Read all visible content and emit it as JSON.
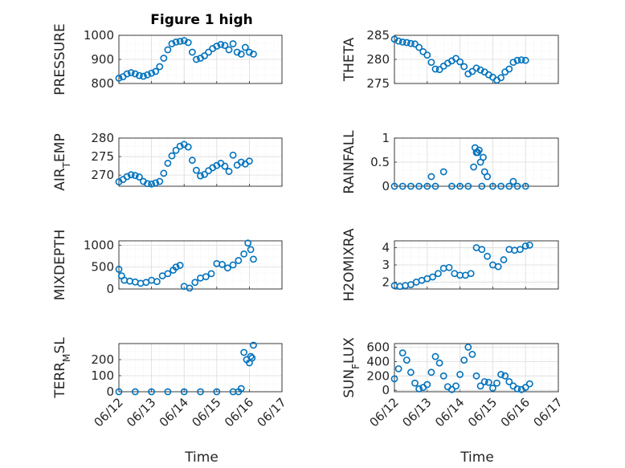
{
  "figure": {
    "title": "Figure 1 high"
  },
  "chart_data": [
    {
      "type": "scatter",
      "ylabel": "PRESSURE",
      "title": "Figure 1 high",
      "xlim": [
        "06/12",
        "06/17"
      ],
      "ylim": [
        800,
        1000
      ],
      "yticks": [
        "800",
        "900",
        "1000"
      ],
      "grid": true,
      "x": [
        "06/12 00:00",
        "06/12 03:00",
        "06/12 06:00",
        "06/12 09:00",
        "06/12 12:00",
        "06/12 15:00",
        "06/12 18:00",
        "06/12 21:00",
        "06/13 00:00",
        "06/13 03:00",
        "06/13 06:00",
        "06/13 09:00",
        "06/13 12:00",
        "06/13 15:00",
        "06/13 18:00",
        "06/13 21:00",
        "06/14 00:00",
        "06/14 03:00",
        "06/14 06:00",
        "06/14 09:00",
        "06/14 12:00",
        "06/14 15:00",
        "06/14 18:00",
        "06/14 21:00",
        "06/15 00:00",
        "06/15 03:00",
        "06/15 06:00",
        "06/15 09:00",
        "06/15 12:00",
        "06/15 15:00",
        "06/15 18:00",
        "06/15 21:00",
        "06/16 00:00",
        "06/16 03:00"
      ],
      "y": [
        822,
        828,
        840,
        845,
        840,
        833,
        830,
        836,
        843,
        850,
        870,
        905,
        940,
        965,
        972,
        975,
        978,
        970,
        930,
        900,
        905,
        915,
        930,
        945,
        955,
        962,
        958,
        940,
        965,
        930,
        922,
        950,
        930,
        922
      ]
    },
    {
      "type": "scatter",
      "ylabel": "THETA",
      "xlim": [
        "06/12",
        "06/17"
      ],
      "ylim": [
        275,
        285
      ],
      "yticks": [
        "275",
        "280",
        "285"
      ],
      "grid": true,
      "x": [
        "06/12 00:00",
        "06/12 03:00",
        "06/12 06:00",
        "06/12 09:00",
        "06/12 12:00",
        "06/12 15:00",
        "06/12 18:00",
        "06/12 21:00",
        "06/13 00:00",
        "06/13 03:00",
        "06/13 06:00",
        "06/13 09:00",
        "06/13 12:00",
        "06/13 15:00",
        "06/13 18:00",
        "06/13 21:00",
        "06/14 00:00",
        "06/14 03:00",
        "06/14 06:00",
        "06/14 09:00",
        "06/14 12:00",
        "06/14 15:00",
        "06/14 18:00",
        "06/14 21:00",
        "06/15 00:00",
        "06/15 03:00",
        "06/15 06:00",
        "06/15 09:00",
        "06/15 12:00",
        "06/15 15:00",
        "06/15 18:00",
        "06/15 21:00",
        "06/16 00:00"
      ],
      "y": [
        284.2,
        283.8,
        283.6,
        283.5,
        283.3,
        283.2,
        282.5,
        281.6,
        280.9,
        279.4,
        278.0,
        277.9,
        278.6,
        279.2,
        279.7,
        280.2,
        279.5,
        278.5,
        277.0,
        277.5,
        278.2,
        277.8,
        277.4,
        276.8,
        276.3,
        275.7,
        276.2,
        277.4,
        278.0,
        279.4,
        279.8,
        279.9,
        279.8
      ]
    },
    {
      "type": "scatter",
      "ylabel": "AIR_TEMP",
      "xlim": [
        "06/12",
        "06/17"
      ],
      "ylim": [
        267,
        280
      ],
      "yticks": [
        "270",
        "275",
        "280"
      ],
      "grid": true,
      "x": [
        "06/12 00:00",
        "06/12 03:00",
        "06/12 06:00",
        "06/12 09:00",
        "06/12 12:00",
        "06/12 15:00",
        "06/12 18:00",
        "06/12 21:00",
        "06/13 00:00",
        "06/13 03:00",
        "06/13 06:00",
        "06/13 09:00",
        "06/13 12:00",
        "06/13 15:00",
        "06/13 18:00",
        "06/13 21:00",
        "06/14 00:00",
        "06/14 03:00",
        "06/14 06:00",
        "06/14 09:00",
        "06/14 12:00",
        "06/14 15:00",
        "06/14 18:00",
        "06/14 21:00",
        "06/15 00:00",
        "06/15 03:00",
        "06/15 06:00",
        "06/15 09:00",
        "06/15 12:00",
        "06/15 15:00",
        "06/15 18:00",
        "06/15 21:00",
        "06/16 00:00"
      ],
      "y": [
        268.2,
        268.8,
        269.6,
        270.1,
        269.9,
        269.5,
        268.3,
        267.7,
        267.6,
        267.9,
        268.3,
        270.5,
        273.2,
        275.2,
        276.7,
        277.8,
        278.3,
        277.6,
        274.0,
        271.3,
        269.8,
        270.2,
        271.2,
        272.0,
        272.6,
        273.2,
        272.4,
        271.0,
        275.4,
        272.7,
        273.5,
        273.0,
        273.8
      ]
    },
    {
      "type": "scatter",
      "ylabel": "RAINFALL",
      "xlim": [
        "06/12",
        "06/17"
      ],
      "ylim": [
        0,
        1
      ],
      "yticks": [
        "0",
        "0.5",
        "1"
      ],
      "grid": true,
      "x": [
        "06/12 00:00",
        "06/12 06:00",
        "06/12 12:00",
        "06/12 18:00",
        "06/13 00:00",
        "06/13 03:00",
        "06/13 06:00",
        "06/13 12:00",
        "06/13 18:00",
        "06/14 00:00",
        "06/14 06:00",
        "06/14 10:00",
        "06/14 11:00",
        "06/14 12:00",
        "06/14 13:00",
        "06/14 14:00",
        "06/14 15:00",
        "06/14 16:00",
        "06/14 17:00",
        "06/14 18:00",
        "06/14 20:00",
        "06/15 00:00",
        "06/15 06:00",
        "06/15 12:00",
        "06/15 15:00",
        "06/15 18:00",
        "06/16 00:00"
      ],
      "y": [
        0,
        0,
        0,
        0,
        0,
        0.2,
        0,
        0.3,
        0,
        0,
        0,
        0.4,
        0.8,
        0.7,
        0.7,
        0.75,
        0.5,
        0,
        0.6,
        0.3,
        0.2,
        0,
        0,
        0,
        0.1,
        0,
        0
      ]
    },
    {
      "type": "scatter",
      "ylabel": "MIXDEPTH",
      "xlim": [
        "06/12",
        "06/17"
      ],
      "ylim": [
        0,
        1100
      ],
      "yticks": [
        "0",
        "500",
        "1000"
      ],
      "grid": true,
      "x": [
        "06/12 00:00",
        "06/12 02:00",
        "06/12 04:00",
        "06/12 08:00",
        "06/12 12:00",
        "06/12 16:00",
        "06/12 20:00",
        "06/13 00:00",
        "06/13 04:00",
        "06/13 08:00",
        "06/13 12:00",
        "06/13 16:00",
        "06/13 18:00",
        "06/13 21:00",
        "06/14 00:00",
        "06/14 04:00",
        "06/14 08:00",
        "06/14 12:00",
        "06/14 16:00",
        "06/14 20:00",
        "06/15 00:00",
        "06/15 04:00",
        "06/15 08:00",
        "06/15 12:00",
        "06/15 16:00",
        "06/15 20:00",
        "06/15 23:00",
        "06/16 01:00",
        "06/16 03:00"
      ],
      "y": [
        450,
        300,
        200,
        180,
        160,
        130,
        150,
        200,
        170,
        300,
        350,
        430,
        500,
        540,
        60,
        20,
        150,
        250,
        280,
        350,
        580,
        560,
        480,
        550,
        650,
        800,
        1050,
        900,
        680
      ]
    },
    {
      "type": "scatter",
      "ylabel": "H2OMIXRA",
      "xlim": [
        "06/12",
        "06/17"
      ],
      "ylim": [
        1.6,
        4.4
      ],
      "yticks": [
        "2",
        "3",
        "4"
      ],
      "grid": true,
      "x": [
        "06/12 00:00",
        "06/12 04:00",
        "06/12 08:00",
        "06/12 12:00",
        "06/12 16:00",
        "06/12 20:00",
        "06/13 00:00",
        "06/13 04:00",
        "06/13 08:00",
        "06/13 12:00",
        "06/13 16:00",
        "06/13 20:00",
        "06/14 00:00",
        "06/14 04:00",
        "06/14 08:00",
        "06/14 12:00",
        "06/14 16:00",
        "06/14 20:00",
        "06/15 00:00",
        "06/15 04:00",
        "06/15 08:00",
        "06/15 12:00",
        "06/15 16:00",
        "06/15 20:00",
        "06/16 00:00",
        "06/16 03:00"
      ],
      "y": [
        1.8,
        1.75,
        1.8,
        1.85,
        2.0,
        2.1,
        2.2,
        2.3,
        2.5,
        2.8,
        2.85,
        2.5,
        2.4,
        2.4,
        2.5,
        4.0,
        3.9,
        3.5,
        3.0,
        2.9,
        3.3,
        3.9,
        3.85,
        3.9,
        4.1,
        4.15
      ]
    },
    {
      "type": "scatter",
      "ylabel": "TERR_MSL",
      "xlim": [
        "06/12",
        "06/17"
      ],
      "ylim": [
        0,
        300
      ],
      "yticks": [
        "0",
        "100",
        "200"
      ],
      "grid": true,
      "x": [
        "06/12 00:00",
        "06/12 12:00",
        "06/13 00:00",
        "06/13 12:00",
        "06/14 00:00",
        "06/14 12:00",
        "06/15 00:00",
        "06/15 12:00",
        "06/15 16:00",
        "06/15 18:00",
        "06/15 20:00",
        "06/15 22:00",
        "06/16 00:00",
        "06/16 01:00",
        "06/16 02:00",
        "06/16 03:00"
      ],
      "y": [
        0,
        0,
        0,
        0,
        0,
        0,
        0,
        0,
        0,
        20,
        245,
        200,
        180,
        220,
        210,
        290
      ]
    },
    {
      "type": "scatter",
      "ylabel": "SUN_FLUX",
      "xlim": [
        "06/12",
        "06/17"
      ],
      "ylim": [
        -20,
        650
      ],
      "yticks": [
        "0",
        "200",
        "400",
        "600"
      ],
      "grid": true,
      "x": [
        "06/12 00:00",
        "06/12 03:00",
        "06/12 06:00",
        "06/12 09:00",
        "06/12 12:00",
        "06/12 15:00",
        "06/12 18:00",
        "06/12 21:00",
        "06/13 00:00",
        "06/13 03:00",
        "06/13 06:00",
        "06/13 09:00",
        "06/13 12:00",
        "06/13 15:00",
        "06/13 18:00",
        "06/13 21:00",
        "06/14 00:00",
        "06/14 03:00",
        "06/14 06:00",
        "06/14 09:00",
        "06/14 12:00",
        "06/14 15:00",
        "06/14 18:00",
        "06/14 21:00",
        "06/15 00:00",
        "06/15 03:00",
        "06/15 06:00",
        "06/15 09:00",
        "06/15 12:00",
        "06/15 15:00",
        "06/15 18:00",
        "06/15 21:00",
        "06/16 00:00",
        "06/16 03:00"
      ],
      "y": [
        160,
        300,
        520,
        420,
        250,
        100,
        20,
        40,
        80,
        250,
        470,
        380,
        200,
        50,
        10,
        60,
        220,
        420,
        600,
        500,
        200,
        60,
        120,
        110,
        30,
        100,
        220,
        200,
        120,
        60,
        20,
        10,
        40,
        90
      ]
    }
  ],
  "axes_common": {
    "xticks": [
      "06/12",
      "06/13",
      "06/14",
      "06/15",
      "06/16",
      "06/17"
    ],
    "xlabel": "Time"
  },
  "colors": {
    "marker": "#0072BD",
    "axis": "#262626",
    "grid": "#dcdcdc"
  }
}
